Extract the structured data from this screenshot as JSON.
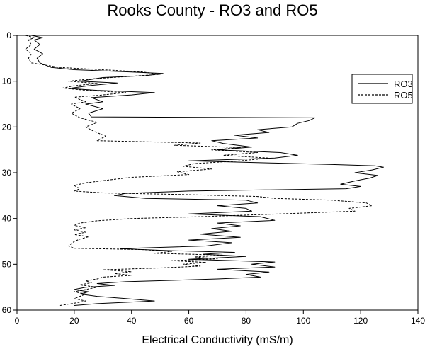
{
  "chart_data": {
    "type": "line",
    "title": "Rooks County - RO3 and RO5",
    "xlabel": "Electrical Conductivity (mS/m)",
    "ylabel": "",
    "xlim": [
      0,
      140
    ],
    "ylim": [
      0,
      60
    ],
    "y_inverted": true,
    "x_ticks": [
      "0",
      "20",
      "40",
      "60",
      "80",
      "100",
      "120",
      "140"
    ],
    "y_ticks": [
      "0",
      "10",
      "20",
      "30",
      "40",
      "50",
      "60"
    ],
    "grid": false,
    "legend": "right",
    "series": [
      {
        "name": "RO3",
        "style": "solid",
        "points": [
          [
            5,
            0
          ],
          [
            9,
            0.5
          ],
          [
            6,
            1
          ],
          [
            8,
            2
          ],
          [
            6,
            3
          ],
          [
            9,
            4
          ],
          [
            7,
            5
          ],
          [
            8,
            6
          ],
          [
            12,
            7
          ],
          [
            20,
            7.5
          ],
          [
            40,
            8
          ],
          [
            51,
            8.3
          ],
          [
            45,
            8.8
          ],
          [
            30,
            9.2
          ],
          [
            22,
            10
          ],
          [
            35,
            10.4
          ],
          [
            25,
            11
          ],
          [
            18,
            11.6
          ],
          [
            28,
            12
          ],
          [
            48,
            12.5
          ],
          [
            40,
            13
          ],
          [
            26,
            13.6
          ],
          [
            30,
            14.5
          ],
          [
            24,
            15
          ],
          [
            30,
            16
          ],
          [
            25,
            17
          ],
          [
            26,
            17.8
          ],
          [
            104,
            18
          ],
          [
            102,
            18.6
          ],
          [
            98,
            19.2
          ],
          [
            96,
            20
          ],
          [
            84,
            20.6
          ],
          [
            88,
            21.2
          ],
          [
            76,
            21.8
          ],
          [
            84,
            22.4
          ],
          [
            68,
            23
          ],
          [
            72,
            23.6
          ],
          [
            82,
            24.4
          ],
          [
            70,
            25
          ],
          [
            92,
            25.6
          ],
          [
            98,
            26.2
          ],
          [
            90,
            26.8
          ],
          [
            60,
            27.4
          ],
          [
            90,
            27.9
          ],
          [
            110,
            28.2
          ],
          [
            125,
            28.5
          ],
          [
            128,
            28.8
          ],
          [
            124,
            29.4
          ],
          [
            118,
            30
          ],
          [
            126,
            30.6
          ],
          [
            123,
            31.2
          ],
          [
            118,
            31.8
          ],
          [
            113,
            32.5
          ],
          [
            120,
            33
          ],
          [
            115,
            33.5
          ],
          [
            60,
            34
          ],
          [
            38,
            34.5
          ],
          [
            34,
            35
          ],
          [
            45,
            35.6
          ],
          [
            80,
            36
          ],
          [
            84,
            36.6
          ],
          [
            70,
            37.2
          ],
          [
            80,
            37.8
          ],
          [
            82,
            38.4
          ],
          [
            60,
            39
          ],
          [
            85,
            39.6
          ],
          [
            90,
            40.4
          ],
          [
            70,
            41
          ],
          [
            78,
            41.6
          ],
          [
            68,
            42.2
          ],
          [
            75,
            42.8
          ],
          [
            64,
            43.4
          ],
          [
            78,
            44.1
          ],
          [
            60,
            44.7
          ],
          [
            75,
            45.3
          ],
          [
            66,
            46
          ],
          [
            36,
            46.6
          ],
          [
            52,
            47
          ],
          [
            76,
            47.4
          ],
          [
            65,
            47.8
          ],
          [
            80,
            48.3
          ],
          [
            60,
            48.9
          ],
          [
            90,
            49.5
          ],
          [
            82,
            50
          ],
          [
            90,
            50.6
          ],
          [
            70,
            51.1
          ],
          [
            88,
            51.7
          ],
          [
            80,
            52.2
          ],
          [
            85,
            52.8
          ],
          [
            70,
            53.2
          ],
          [
            38,
            53.8
          ],
          [
            28,
            54.2
          ],
          [
            34,
            54.6
          ],
          [
            24,
            55
          ],
          [
            20,
            55.5
          ],
          [
            25,
            56
          ],
          [
            22,
            56.5
          ],
          [
            28,
            57
          ],
          [
            38,
            57.5
          ],
          [
            48,
            58
          ],
          [
            28,
            58.6
          ],
          [
            20,
            59
          ]
        ]
      },
      {
        "name": "RO5",
        "style": "dashed",
        "points": [
          [
            3,
            0
          ],
          [
            6,
            0.5
          ],
          [
            4,
            1
          ],
          [
            5,
            2
          ],
          [
            3,
            3
          ],
          [
            5,
            4
          ],
          [
            4,
            5
          ],
          [
            5,
            6
          ],
          [
            15,
            7
          ],
          [
            30,
            7.5
          ],
          [
            44,
            8
          ],
          [
            50,
            8.5
          ],
          [
            38,
            9
          ],
          [
            26,
            9.5
          ],
          [
            18,
            10
          ],
          [
            28,
            10.5
          ],
          [
            20,
            11
          ],
          [
            16,
            11.5
          ],
          [
            24,
            12
          ],
          [
            38,
            12.5
          ],
          [
            30,
            13
          ],
          [
            20,
            13.5
          ],
          [
            24,
            14.5
          ],
          [
            19,
            15
          ],
          [
            22,
            16
          ],
          [
            19,
            17
          ],
          [
            22,
            18
          ],
          [
            28,
            19
          ],
          [
            24,
            20
          ],
          [
            27,
            21
          ],
          [
            31,
            22
          ],
          [
            28,
            23
          ],
          [
            64,
            23.5
          ],
          [
            55,
            24
          ],
          [
            78,
            24.5
          ],
          [
            68,
            25
          ],
          [
            84,
            25.6
          ],
          [
            72,
            26.2
          ],
          [
            88,
            26.8
          ],
          [
            78,
            27.4
          ],
          [
            62,
            28
          ],
          [
            58,
            28.6
          ],
          [
            68,
            29.2
          ],
          [
            56,
            29.8
          ],
          [
            60,
            30.4
          ],
          [
            40,
            31
          ],
          [
            32,
            31.6
          ],
          [
            24,
            32.2
          ],
          [
            20,
            32.8
          ],
          [
            22,
            33.5
          ],
          [
            20,
            34
          ],
          [
            30,
            34.4
          ],
          [
            60,
            34.8
          ],
          [
            84,
            35.2
          ],
          [
            90,
            35.6
          ],
          [
            110,
            36
          ],
          [
            122,
            36.6
          ],
          [
            124,
            37.2
          ],
          [
            116,
            37.8
          ],
          [
            118,
            38.4
          ],
          [
            92,
            39
          ],
          [
            64,
            39.6
          ],
          [
            40,
            40
          ],
          [
            28,
            40.5
          ],
          [
            22,
            41
          ],
          [
            20,
            41.5
          ],
          [
            24,
            42
          ],
          [
            20,
            42.5
          ],
          [
            24,
            43
          ],
          [
            20,
            43.5
          ],
          [
            25,
            44
          ],
          [
            22,
            44.5
          ],
          [
            20,
            45
          ],
          [
            19,
            45.5
          ],
          [
            18,
            46
          ],
          [
            20,
            46.5
          ],
          [
            44,
            46.8
          ],
          [
            54,
            47.2
          ],
          [
            48,
            47.6
          ],
          [
            72,
            48
          ],
          [
            62,
            48.4
          ],
          [
            70,
            48.8
          ],
          [
            54,
            49.2
          ],
          [
            66,
            49.6
          ],
          [
            58,
            50
          ],
          [
            64,
            50.4
          ],
          [
            50,
            50.8
          ],
          [
            30,
            51.2
          ],
          [
            40,
            51.6
          ],
          [
            34,
            52
          ],
          [
            40,
            52.4
          ],
          [
            30,
            52.8
          ],
          [
            28,
            53.2
          ],
          [
            24,
            53.6
          ],
          [
            26,
            54
          ],
          [
            22,
            54.5
          ],
          [
            28,
            55
          ],
          [
            24,
            55.5
          ],
          [
            20,
            56
          ],
          [
            24,
            56.5
          ],
          [
            22,
            57
          ],
          [
            20,
            57.5
          ],
          [
            24,
            58
          ],
          [
            20,
            58.5
          ],
          [
            15,
            59
          ]
        ]
      }
    ]
  }
}
